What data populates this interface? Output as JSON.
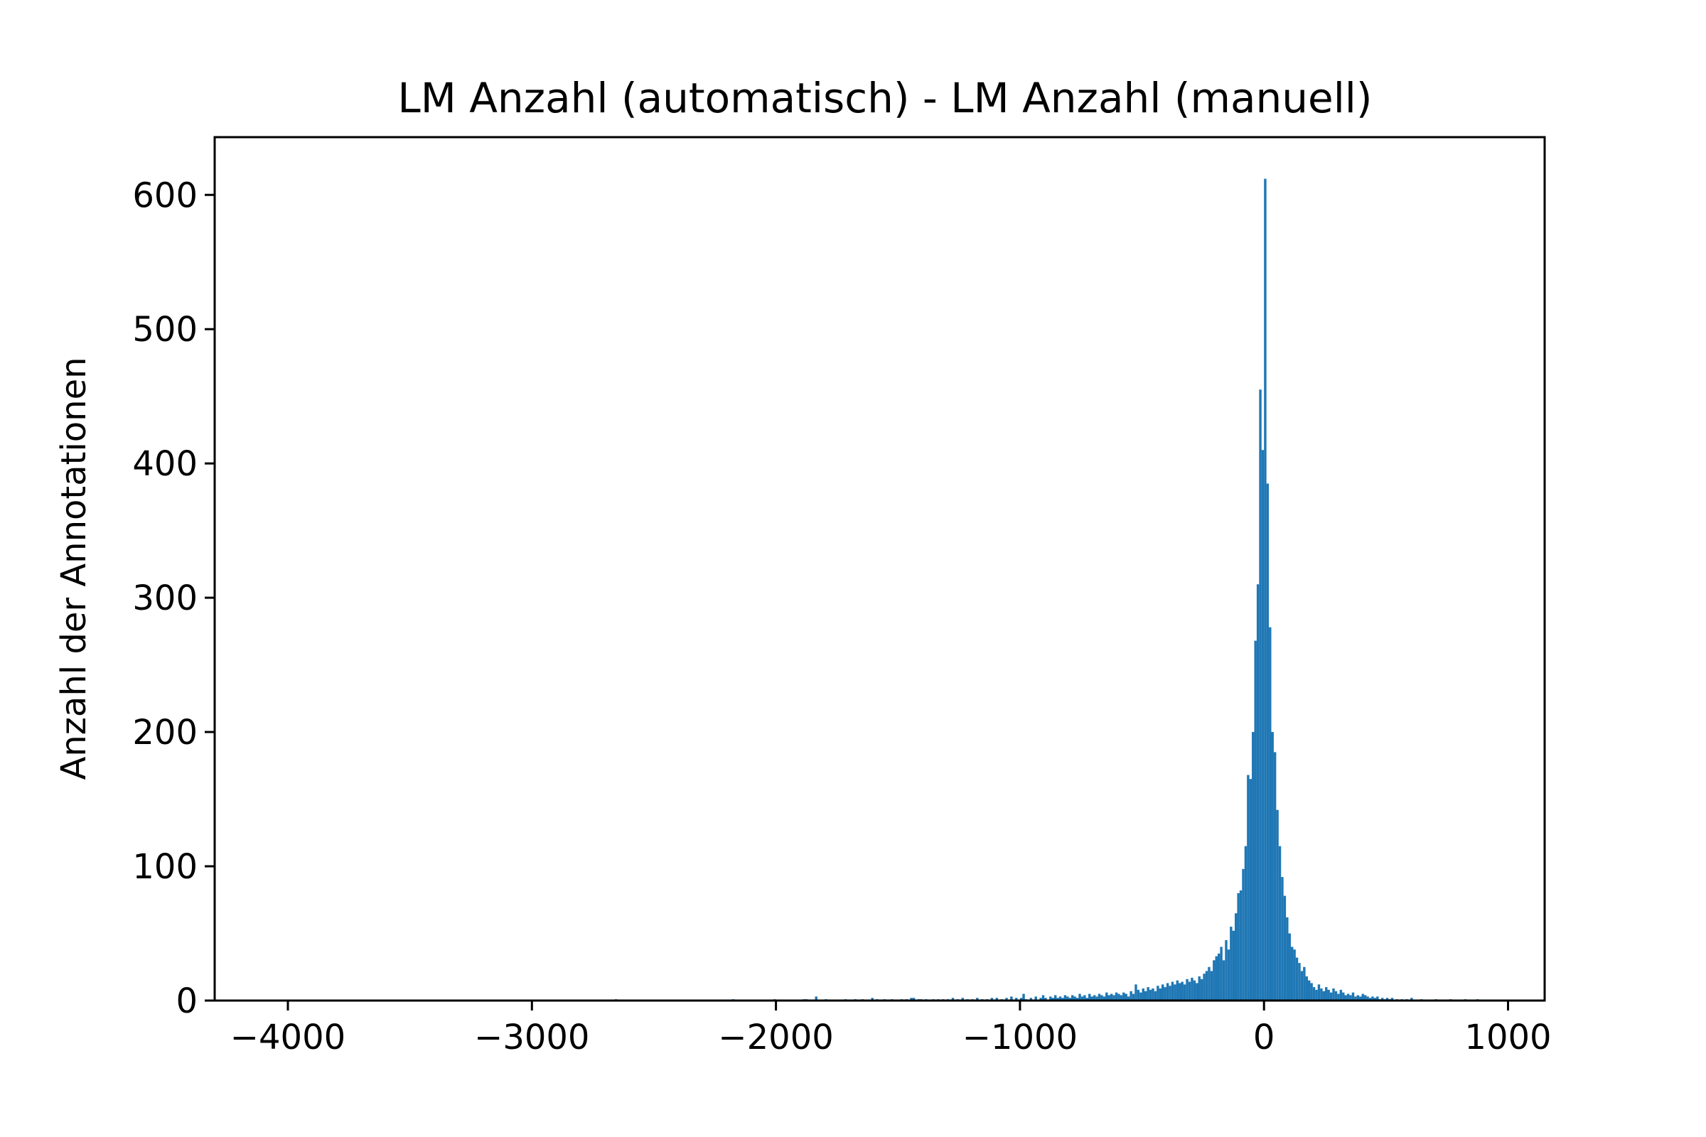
{
  "chart_data": {
    "type": "bar",
    "title": "LM Anzahl (automatisch) - LM Anzahl (manuell)",
    "xlabel": "",
    "ylabel": "Anzahl der Annotationen",
    "xlim": [
      -4300,
      1150
    ],
    "ylim": [
      0,
      643
    ],
    "x_ticks": [
      -4000,
      -3000,
      -2000,
      -1000,
      0,
      1000
    ],
    "x_tick_labels": [
      "−4000",
      "−3000",
      "−2000",
      "−1000",
      "0",
      "1000"
    ],
    "y_ticks": [
      0,
      100,
      200,
      300,
      400,
      500,
      600
    ],
    "y_tick_labels": [
      "0",
      "100",
      "200",
      "300",
      "400",
      "500",
      "600"
    ],
    "grid": false,
    "color": "#1f77b4",
    "bin_width": 10,
    "bins": [
      [
        -2660,
        1
      ],
      [
        -2180,
        1
      ],
      [
        -2010,
        1
      ],
      [
        -1890,
        1
      ],
      [
        -1880,
        1
      ],
      [
        -1840,
        3
      ],
      [
        -1800,
        1
      ],
      [
        -1720,
        1
      ],
      [
        -1680,
        1
      ],
      [
        -1650,
        1
      ],
      [
        -1610,
        2
      ],
      [
        -1590,
        1
      ],
      [
        -1560,
        1
      ],
      [
        -1530,
        1
      ],
      [
        -1490,
        1
      ],
      [
        -1470,
        1
      ],
      [
        -1450,
        2
      ],
      [
        -1440,
        2
      ],
      [
        -1420,
        1
      ],
      [
        -1410,
        1
      ],
      [
        -1390,
        1
      ],
      [
        -1360,
        1
      ],
      [
        -1340,
        1
      ],
      [
        -1320,
        1
      ],
      [
        -1300,
        1
      ],
      [
        -1280,
        2
      ],
      [
        -1260,
        1
      ],
      [
        -1240,
        2
      ],
      [
        -1220,
        1
      ],
      [
        -1200,
        1
      ],
      [
        -1180,
        2
      ],
      [
        -1160,
        1
      ],
      [
        -1140,
        1
      ],
      [
        -1120,
        2
      ],
      [
        -1100,
        2
      ],
      [
        -1080,
        1
      ],
      [
        -1060,
        2
      ],
      [
        -1040,
        3
      ],
      [
        -1020,
        2
      ],
      [
        -1000,
        2
      ],
      [
        -990,
        5
      ],
      [
        -980,
        1
      ],
      [
        -960,
        2
      ],
      [
        -940,
        3
      ],
      [
        -920,
        2
      ],
      [
        -910,
        4
      ],
      [
        -900,
        2
      ],
      [
        -880,
        3
      ],
      [
        -870,
        2
      ],
      [
        -860,
        4
      ],
      [
        -850,
        2
      ],
      [
        -840,
        3
      ],
      [
        -830,
        2
      ],
      [
        -820,
        4
      ],
      [
        -810,
        3
      ],
      [
        -800,
        2
      ],
      [
        -790,
        4
      ],
      [
        -780,
        3
      ],
      [
        -770,
        2
      ],
      [
        -760,
        5
      ],
      [
        -750,
        3
      ],
      [
        -740,
        4
      ],
      [
        -730,
        2
      ],
      [
        -720,
        5
      ],
      [
        -710,
        3
      ],
      [
        -700,
        4
      ],
      [
        -690,
        3
      ],
      [
        -680,
        5
      ],
      [
        -670,
        4
      ],
      [
        -660,
        3
      ],
      [
        -650,
        6
      ],
      [
        -640,
        4
      ],
      [
        -630,
        5
      ],
      [
        -620,
        4
      ],
      [
        -610,
        6
      ],
      [
        -600,
        5
      ],
      [
        -590,
        4
      ],
      [
        -580,
        6
      ],
      [
        -570,
        5
      ],
      [
        -560,
        3
      ],
      [
        -550,
        7
      ],
      [
        -540,
        5
      ],
      [
        -530,
        12
      ],
      [
        -520,
        8
      ],
      [
        -510,
        6
      ],
      [
        -500,
        9
      ],
      [
        -490,
        7
      ],
      [
        -480,
        10
      ],
      [
        -470,
        8
      ],
      [
        -460,
        9
      ],
      [
        -450,
        7
      ],
      [
        -440,
        11
      ],
      [
        -430,
        9
      ],
      [
        -420,
        12
      ],
      [
        -410,
        10
      ],
      [
        -400,
        13
      ],
      [
        -390,
        11
      ],
      [
        -380,
        14
      ],
      [
        -370,
        12
      ],
      [
        -360,
        15
      ],
      [
        -350,
        13
      ],
      [
        -340,
        14
      ],
      [
        -330,
        12
      ],
      [
        -320,
        16
      ],
      [
        -310,
        14
      ],
      [
        -300,
        17
      ],
      [
        -290,
        15
      ],
      [
        -280,
        13
      ],
      [
        -270,
        18
      ],
      [
        -260,
        16
      ],
      [
        -250,
        20
      ],
      [
        -240,
        22
      ],
      [
        -230,
        25
      ],
      [
        -220,
        22
      ],
      [
        -210,
        30
      ],
      [
        -200,
        33
      ],
      [
        -190,
        35
      ],
      [
        -180,
        40
      ],
      [
        -170,
        30
      ],
      [
        -160,
        45
      ],
      [
        -150,
        38
      ],
      [
        -140,
        55
      ],
      [
        -130,
        52
      ],
      [
        -120,
        65
      ],
      [
        -110,
        80
      ],
      [
        -100,
        82
      ],
      [
        -90,
        98
      ],
      [
        -80,
        115
      ],
      [
        -70,
        168
      ],
      [
        -60,
        165
      ],
      [
        -50,
        200
      ],
      [
        -40,
        268
      ],
      [
        -30,
        310
      ],
      [
        -20,
        455
      ],
      [
        -10,
        410
      ],
      [
        0,
        612
      ],
      [
        10,
        385
      ],
      [
        20,
        278
      ],
      [
        30,
        200
      ],
      [
        40,
        185
      ],
      [
        50,
        142
      ],
      [
        60,
        115
      ],
      [
        70,
        92
      ],
      [
        80,
        78
      ],
      [
        90,
        62
      ],
      [
        100,
        50
      ],
      [
        110,
        40
      ],
      [
        120,
        38
      ],
      [
        130,
        32
      ],
      [
        140,
        28
      ],
      [
        150,
        22
      ],
      [
        160,
        25
      ],
      [
        170,
        18
      ],
      [
        180,
        15
      ],
      [
        190,
        13
      ],
      [
        200,
        10
      ],
      [
        210,
        8
      ],
      [
        220,
        12
      ],
      [
        230,
        9
      ],
      [
        240,
        7
      ],
      [
        250,
        10
      ],
      [
        260,
        8
      ],
      [
        270,
        6
      ],
      [
        280,
        9
      ],
      [
        290,
        7
      ],
      [
        300,
        5
      ],
      [
        310,
        8
      ],
      [
        320,
        6
      ],
      [
        330,
        4
      ],
      [
        340,
        5
      ],
      [
        350,
        4
      ],
      [
        360,
        6
      ],
      [
        370,
        3
      ],
      [
        380,
        4
      ],
      [
        390,
        3
      ],
      [
        400,
        5
      ],
      [
        410,
        4
      ],
      [
        420,
        3
      ],
      [
        430,
        2
      ],
      [
        440,
        3
      ],
      [
        450,
        2
      ],
      [
        460,
        3
      ],
      [
        470,
        1
      ],
      [
        480,
        2
      ],
      [
        490,
        1
      ],
      [
        500,
        2
      ],
      [
        510,
        1
      ],
      [
        520,
        2
      ],
      [
        540,
        1
      ],
      [
        560,
        1
      ],
      [
        580,
        1
      ],
      [
        600,
        2
      ],
      [
        640,
        1
      ],
      [
        700,
        1
      ],
      [
        760,
        1
      ],
      [
        820,
        1
      ],
      [
        870,
        1
      ]
    ]
  }
}
